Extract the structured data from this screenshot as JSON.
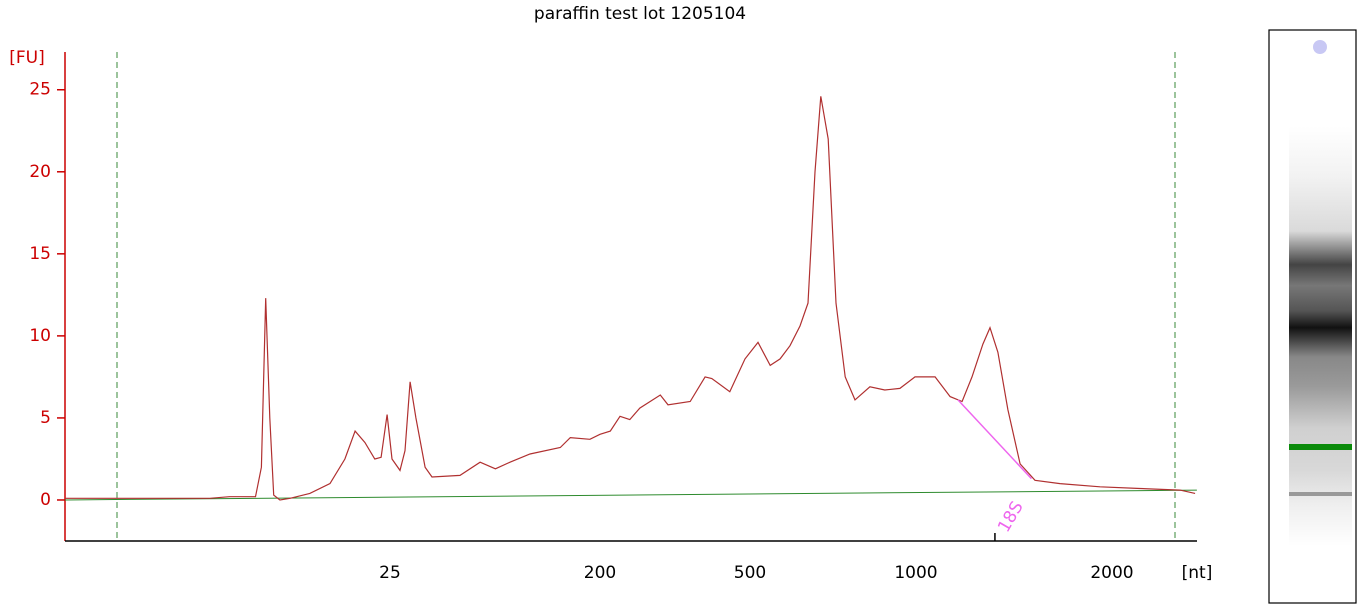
{
  "chart_data": {
    "type": "line",
    "title": "paraffin test lot 1205104",
    "y_label": "[FU]",
    "x_label": "[nt]",
    "x_scale": "log",
    "xlim": [
      1.0,
      2700
    ],
    "xticks": [
      25,
      200,
      500,
      1000,
      2000
    ],
    "ylim": [
      -2.5,
      27.3
    ],
    "yticks": [
      0,
      5,
      10,
      15,
      20,
      25
    ],
    "color": "#b03030",
    "axis_color": "#cc0000",
    "x": [
      1.0,
      4.2,
      5.1,
      6.6,
      7.0,
      7.3,
      7.6,
      7.9,
      8.4,
      9.3,
      11.3,
      13.8,
      16.0,
      17.7,
      19.5,
      21.5,
      22.9,
      24.3,
      25.5,
      27.6,
      29.0,
      30.5,
      32.3,
      35.4,
      37.9,
      50,
      61,
      71,
      82,
      100,
      135,
      149,
      181,
      200,
      213,
      226,
      240,
      255,
      289,
      303,
      347,
      380,
      396,
      442,
      485,
      517,
      544,
      567,
      591,
      616,
      637,
      656,
      672,
      693,
      716,
      744,
      775,
      825,
      878,
      935,
      996,
      1070,
      1128,
      1177,
      1219,
      1267,
      1299,
      1336,
      1384,
      1445,
      1523,
      1664,
      1917,
      2208,
      2544,
      2683
    ],
    "values": [
      0.1,
      0.1,
      0.2,
      0.2,
      2,
      12.3,
      5,
      0.3,
      0,
      0.1,
      0.4,
      1,
      2.5,
      4.2,
      3.5,
      2.5,
      2.6,
      5.2,
      2.5,
      1.8,
      3,
      7.2,
      5,
      2,
      1.4,
      1.5,
      2.3,
      1.9,
      2.3,
      2.8,
      3.2,
      3.8,
      3.7,
      4.0,
      4.2,
      5.1,
      4.9,
      5.6,
      6.4,
      5.8,
      6.0,
      7.5,
      7.4,
      6.6,
      8.6,
      9.6,
      8.2,
      8.6,
      9.4,
      10.6,
      12,
      20,
      24.6,
      22,
      12,
      7.5,
      6.1,
      6.9,
      6.7,
      6.8,
      7.5,
      7.5,
      6.3,
      6.0,
      7.5,
      9.5,
      10.5,
      9,
      5.5,
      2.2,
      1.2,
      1.0,
      0.8,
      0.7,
      0.6,
      0.4
    ],
    "baseline": {
      "color": "#2e8b2e",
      "x": [
        1.0,
        2700
      ],
      "y": [
        0,
        0.6
      ]
    },
    "peak_baseline": {
      "color": "#ee66ee",
      "x": [
        1160,
        1504
      ],
      "y": [
        6.1,
        1.3
      ]
    },
    "annotations": [
      {
        "text": "18S",
        "x": 1322
      }
    ]
  }
}
